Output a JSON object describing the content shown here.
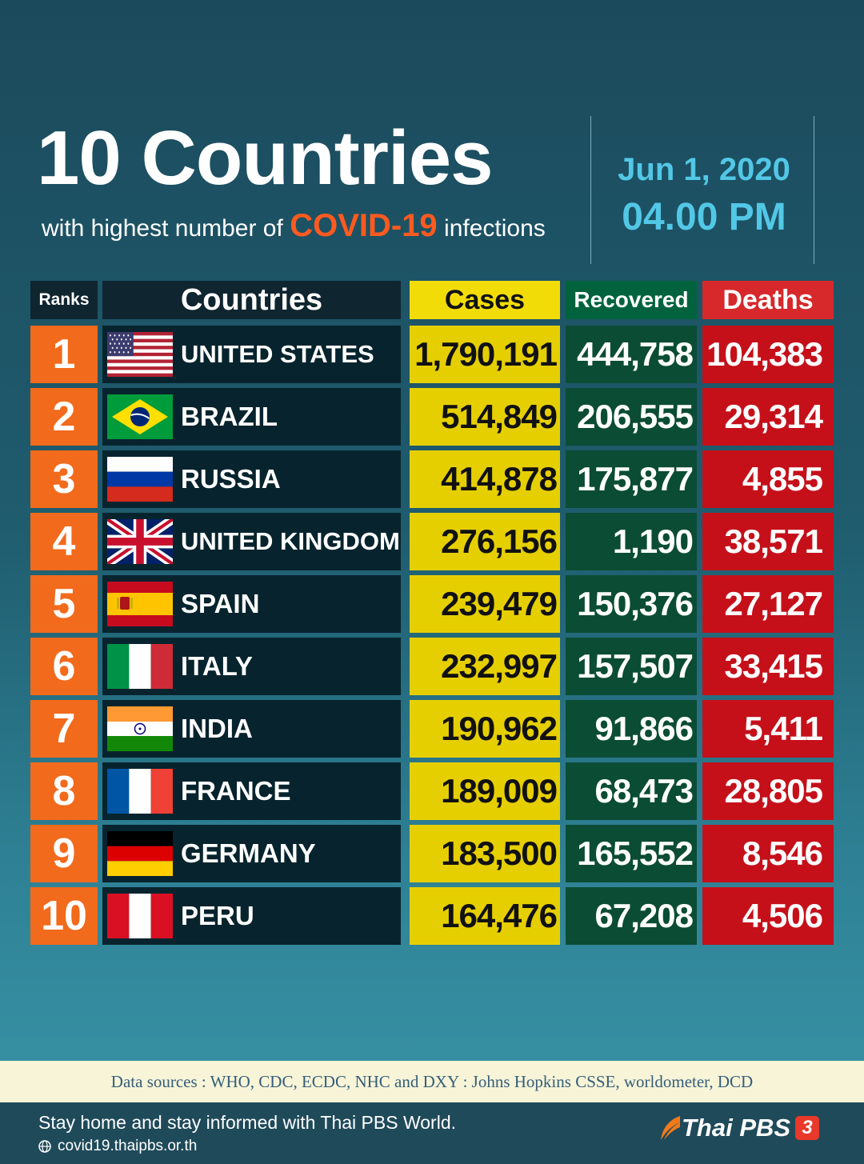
{
  "header": {
    "title": "10 Countries",
    "subtitle_pre": "with highest number of",
    "subtitle_highlight": "COVID-19",
    "subtitle_post": "infections",
    "date": "Jun 1, 2020",
    "time": "04.00 PM"
  },
  "table": {
    "columns": [
      "Ranks",
      "Countries",
      "Cases",
      "Recovered",
      "Deaths"
    ],
    "rows": [
      {
        "rank": "1",
        "flag": "us-flag-icon",
        "country": "UNITED STATES",
        "cases": "1,790,191",
        "recovered": "444,758",
        "deaths": "104,383"
      },
      {
        "rank": "2",
        "flag": "brazil-flag-icon",
        "country": "BRAZIL",
        "cases": "514,849",
        "recovered": "206,555",
        "deaths": "29,314"
      },
      {
        "rank": "3",
        "flag": "russia-flag-icon",
        "country": "RUSSIA",
        "cases": "414,878",
        "recovered": "175,877",
        "deaths": "4,855"
      },
      {
        "rank": "4",
        "flag": "uk-flag-icon",
        "country": "UNITED KINGDOM",
        "cases": "276,156",
        "recovered": "1,190",
        "deaths": "38,571"
      },
      {
        "rank": "5",
        "flag": "spain-flag-icon",
        "country": "SPAIN",
        "cases": "239,479",
        "recovered": "150,376",
        "deaths": "27,127"
      },
      {
        "rank": "6",
        "flag": "italy-flag-icon",
        "country": "ITALY",
        "cases": "232,997",
        "recovered": "157,507",
        "deaths": "33,415"
      },
      {
        "rank": "7",
        "flag": "india-flag-icon",
        "country": "INDIA",
        "cases": "190,962",
        "recovered": "91,866",
        "deaths": "5,411"
      },
      {
        "rank": "8",
        "flag": "france-flag-icon",
        "country": "FRANCE",
        "cases": "189,009",
        "recovered": "68,473",
        "deaths": "28,805"
      },
      {
        "rank": "9",
        "flag": "germany-flag-icon",
        "country": "GERMANY",
        "cases": "183,500",
        "recovered": "165,552",
        "deaths": "8,546"
      },
      {
        "rank": "10",
        "flag": "peru-flag-icon",
        "country": "PERU",
        "cases": "164,476",
        "recovered": "67,208",
        "deaths": "4,506"
      }
    ]
  },
  "sources": "Data sources : WHO, CDC, ECDC, NHC and DXY : Johns Hopkins CSSE, worldometer, DCD",
  "footer": {
    "message": "Stay home and stay informed with Thai PBS World.",
    "website": "covid19.thaipbs.or.th",
    "brand": "Thai PBS",
    "channel": "3"
  },
  "colors": {
    "cases": "#e6cf00",
    "recovered": "#0b4c34",
    "deaths": "#c5101a",
    "rank": "#f26a1b",
    "highlight": "#ff5a1f",
    "date": "#52c7e6"
  }
}
